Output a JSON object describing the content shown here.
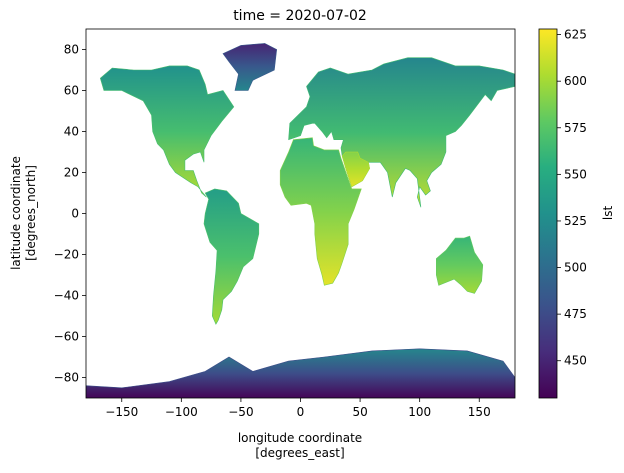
{
  "chart_data": {
    "type": "heatmap",
    "title": "time = 2020-07-02",
    "xlabel": [
      "longitude coordinate",
      "[degrees_east]"
    ],
    "ylabel": [
      "latitude coordinate",
      "[degrees_north]"
    ],
    "xlim": [
      -180,
      180
    ],
    "ylim": [
      -90,
      90
    ],
    "xticks": [
      -150,
      -100,
      -50,
      0,
      50,
      100,
      150
    ],
    "yticks": [
      -80,
      -60,
      -40,
      -20,
      0,
      20,
      40,
      60,
      80
    ],
    "colorbar": {
      "label": "lst",
      "colormap": "viridis",
      "range": [
        430,
        628
      ],
      "ticks": [
        450,
        475,
        500,
        525,
        550,
        575,
        600,
        625
      ]
    },
    "regions": [
      {
        "name": "North America",
        "value_range": [
          530,
          605
        ],
        "polygon": [
          [
            -168,
            66
          ],
          [
            -158,
            71
          ],
          [
            -140,
            70
          ],
          [
            -125,
            70
          ],
          [
            -110,
            72
          ],
          [
            -95,
            72
          ],
          [
            -85,
            70
          ],
          [
            -80,
            63
          ],
          [
            -78,
            58
          ],
          [
            -65,
            60
          ],
          [
            -56,
            52
          ],
          [
            -66,
            45
          ],
          [
            -75,
            38
          ],
          [
            -81,
            31
          ],
          [
            -81,
            25
          ],
          [
            -84,
            30
          ],
          [
            -90,
            29
          ],
          [
            -97,
            26
          ],
          [
            -97,
            21
          ],
          [
            -90,
            21
          ],
          [
            -87,
            16
          ],
          [
            -83,
            10
          ],
          [
            -79,
            8
          ],
          [
            -86,
            13
          ],
          [
            -92,
            15
          ],
          [
            -105,
            20
          ],
          [
            -110,
            24
          ],
          [
            -115,
            31
          ],
          [
            -120,
            34
          ],
          [
            -124,
            40
          ],
          [
            -125,
            48
          ],
          [
            -132,
            55
          ],
          [
            -150,
            60
          ],
          [
            -165,
            60
          ]
        ]
      },
      {
        "name": "Greenland",
        "value_range": [
          450,
          520
        ],
        "polygon": [
          [
            -55,
            60
          ],
          [
            -44,
            60
          ],
          [
            -40,
            65
          ],
          [
            -22,
            70
          ],
          [
            -20,
            80
          ],
          [
            -30,
            83
          ],
          [
            -50,
            82
          ],
          [
            -65,
            78
          ],
          [
            -60,
            74
          ],
          [
            -52,
            68
          ]
        ]
      },
      {
        "name": "South America",
        "value_range": [
          540,
          600
        ],
        "polygon": [
          [
            -80,
            10
          ],
          [
            -72,
            12
          ],
          [
            -62,
            11
          ],
          [
            -52,
            5
          ],
          [
            -50,
            0
          ],
          [
            -35,
            -5
          ],
          [
            -35,
            -10
          ],
          [
            -40,
            -22
          ],
          [
            -48,
            -26
          ],
          [
            -53,
            -33
          ],
          [
            -58,
            -38
          ],
          [
            -65,
            -42
          ],
          [
            -66,
            -47
          ],
          [
            -69,
            -52
          ],
          [
            -71,
            -54
          ],
          [
            -74,
            -50
          ],
          [
            -73,
            -40
          ],
          [
            -71,
            -28
          ],
          [
            -70,
            -18
          ],
          [
            -76,
            -14
          ],
          [
            -81,
            -5
          ],
          [
            -80,
            0
          ],
          [
            -77,
            7
          ]
        ]
      },
      {
        "name": "Africa",
        "value_range": [
          560,
          620
        ],
        "polygon": [
          [
            -17,
            21
          ],
          [
            -10,
            30
          ],
          [
            -6,
            36
          ],
          [
            10,
            37
          ],
          [
            11,
            33
          ],
          [
            20,
            31
          ],
          [
            32,
            31
          ],
          [
            34,
            27
          ],
          [
            43,
            12
          ],
          [
            51,
            12
          ],
          [
            45,
            2
          ],
          [
            40,
            -5
          ],
          [
            40,
            -15
          ],
          [
            35,
            -24
          ],
          [
            32,
            -29
          ],
          [
            27,
            -34
          ],
          [
            20,
            -35
          ],
          [
            18,
            -30
          ],
          [
            14,
            -22
          ],
          [
            12,
            -10
          ],
          [
            12,
            -5
          ],
          [
            9,
            4
          ],
          [
            5,
            5
          ],
          [
            -8,
            4
          ],
          [
            -13,
            8
          ],
          [
            -17,
            14
          ]
        ]
      },
      {
        "name": "Eurasia",
        "value_range": [
          520,
          610
        ],
        "polygon": [
          [
            -10,
            36
          ],
          [
            -9,
            44
          ],
          [
            -2,
            48
          ],
          [
            5,
            52
          ],
          [
            8,
            57
          ],
          [
            5,
            62
          ],
          [
            15,
            69
          ],
          [
            25,
            71
          ],
          [
            40,
            68
          ],
          [
            60,
            70
          ],
          [
            70,
            73
          ],
          [
            90,
            76
          ],
          [
            110,
            76
          ],
          [
            130,
            72
          ],
          [
            150,
            72
          ],
          [
            170,
            70
          ],
          [
            180,
            68
          ],
          [
            180,
            62
          ],
          [
            165,
            60
          ],
          [
            160,
            55
          ],
          [
            155,
            58
          ],
          [
            142,
            48
          ],
          [
            135,
            43
          ],
          [
            130,
            40
          ],
          [
            122,
            38
          ],
          [
            122,
            30
          ],
          [
            118,
            24
          ],
          [
            110,
            20
          ],
          [
            106,
            16
          ],
          [
            109,
            11
          ],
          [
            105,
            9
          ],
          [
            100,
            13
          ],
          [
            98,
            8
          ],
          [
            101,
            3
          ],
          [
            98,
            17
          ],
          [
            92,
            21
          ],
          [
            88,
            22
          ],
          [
            80,
            15
          ],
          [
            77,
            8
          ],
          [
            73,
            20
          ],
          [
            67,
            25
          ],
          [
            57,
            25
          ],
          [
            58,
            22
          ],
          [
            52,
            16
          ],
          [
            43,
            13
          ],
          [
            38,
            22
          ],
          [
            35,
            28
          ],
          [
            34,
            32
          ],
          [
            36,
            36
          ],
          [
            28,
            36
          ],
          [
            26,
            40
          ],
          [
            22,
            37
          ],
          [
            18,
            40
          ],
          [
            12,
            44
          ],
          [
            10,
            44
          ],
          [
            3,
            43
          ],
          [
            0,
            38
          ]
        ]
      },
      {
        "name": "Arabia",
        "value_range": [
          590,
          620
        ],
        "polygon": [
          [
            35,
            28
          ],
          [
            38,
            22
          ],
          [
            43,
            13
          ],
          [
            52,
            16
          ],
          [
            58,
            22
          ],
          [
            57,
            25
          ],
          [
            50,
            27
          ],
          [
            48,
            30
          ],
          [
            44,
            30
          ],
          [
            38,
            30
          ]
        ]
      },
      {
        "name": "Australia",
        "value_range": [
          560,
          600
        ],
        "polygon": [
          [
            114,
            -22
          ],
          [
            122,
            -18
          ],
          [
            130,
            -12
          ],
          [
            137,
            -12
          ],
          [
            142,
            -11
          ],
          [
            146,
            -19
          ],
          [
            153,
            -25
          ],
          [
            152,
            -33
          ],
          [
            146,
            -39
          ],
          [
            140,
            -38
          ],
          [
            135,
            -35
          ],
          [
            129,
            -32
          ],
          [
            116,
            -35
          ],
          [
            114,
            -30
          ]
        ]
      },
      {
        "name": "Antarctica",
        "value_range": [
          432,
          520
        ],
        "polygon": [
          [
            -180,
            -84
          ],
          [
            -150,
            -85
          ],
          [
            -110,
            -82
          ],
          [
            -80,
            -77
          ],
          [
            -60,
            -70
          ],
          [
            -40,
            -77
          ],
          [
            -10,
            -72
          ],
          [
            20,
            -70
          ],
          [
            60,
            -67
          ],
          [
            100,
            -66
          ],
          [
            140,
            -67
          ],
          [
            170,
            -72
          ],
          [
            180,
            -80
          ],
          [
            180,
            -90
          ],
          [
            -180,
            -90
          ]
        ]
      }
    ]
  }
}
